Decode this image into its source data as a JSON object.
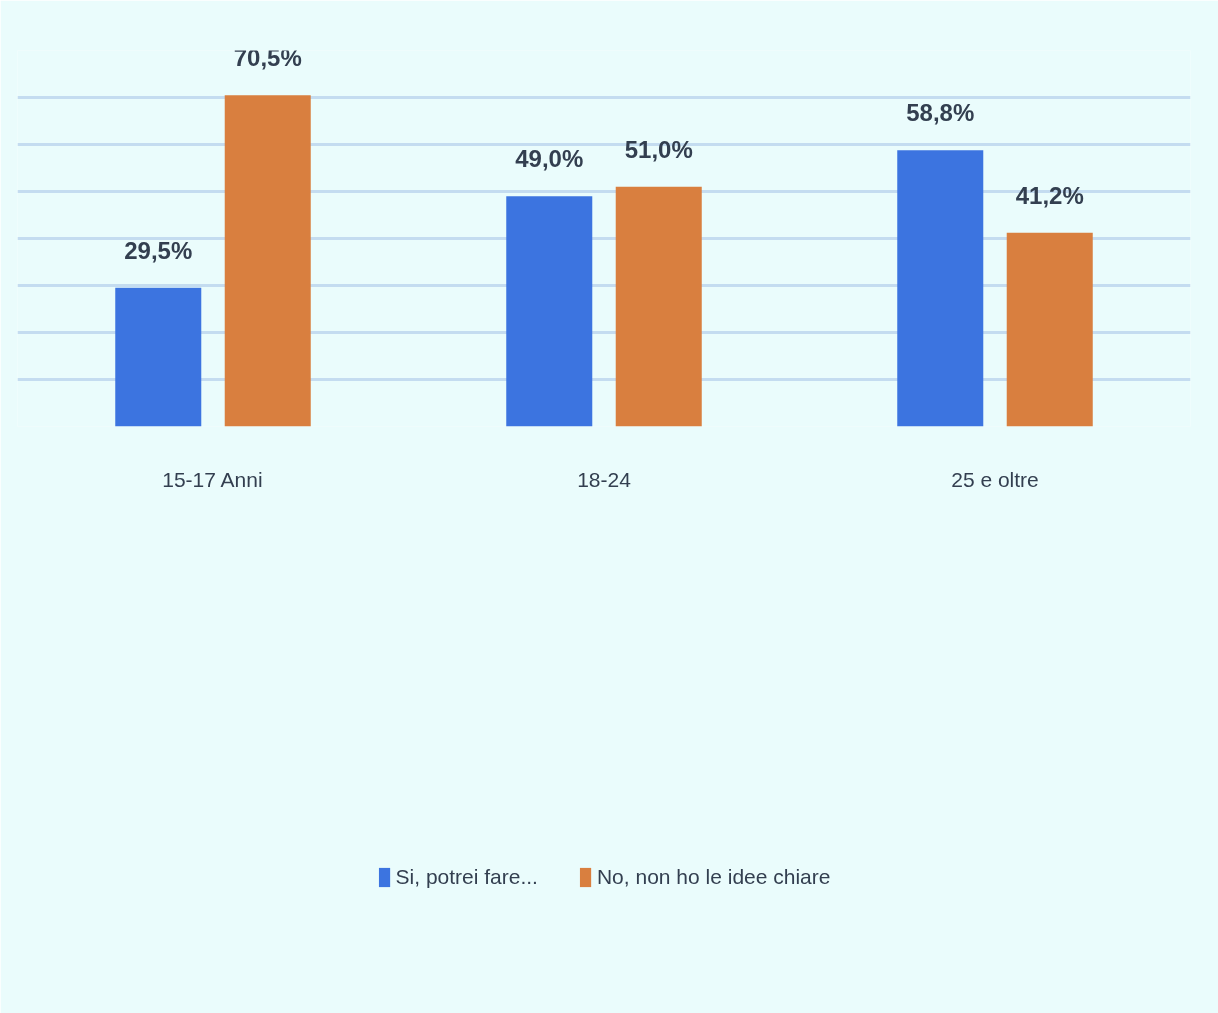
{
  "chart_data": {
    "type": "bar",
    "categories": [
      "15-17 Anni",
      "18-24",
      "25 e oltre"
    ],
    "series": [
      {
        "name": "Si, potrei fare...",
        "color": "#3c74e0",
        "values": [
          29.5,
          49.0,
          58.8
        ],
        "value_labels": [
          "29,5%",
          "49,0%",
          "58,8%"
        ]
      },
      {
        "name": "No, non ho le idee chiare",
        "color": "#d97f3f",
        "values": [
          70.5,
          51.0,
          41.2
        ],
        "value_labels": [
          "70,5%",
          "51,0%",
          "41,2%"
        ]
      }
    ],
    "ylim": [
      0,
      80
    ],
    "yticks": [
      0,
      10,
      20,
      30,
      40,
      50,
      60,
      70,
      80
    ],
    "grid": "y",
    "legend": "bottom",
    "tick_labels": "x"
  }
}
